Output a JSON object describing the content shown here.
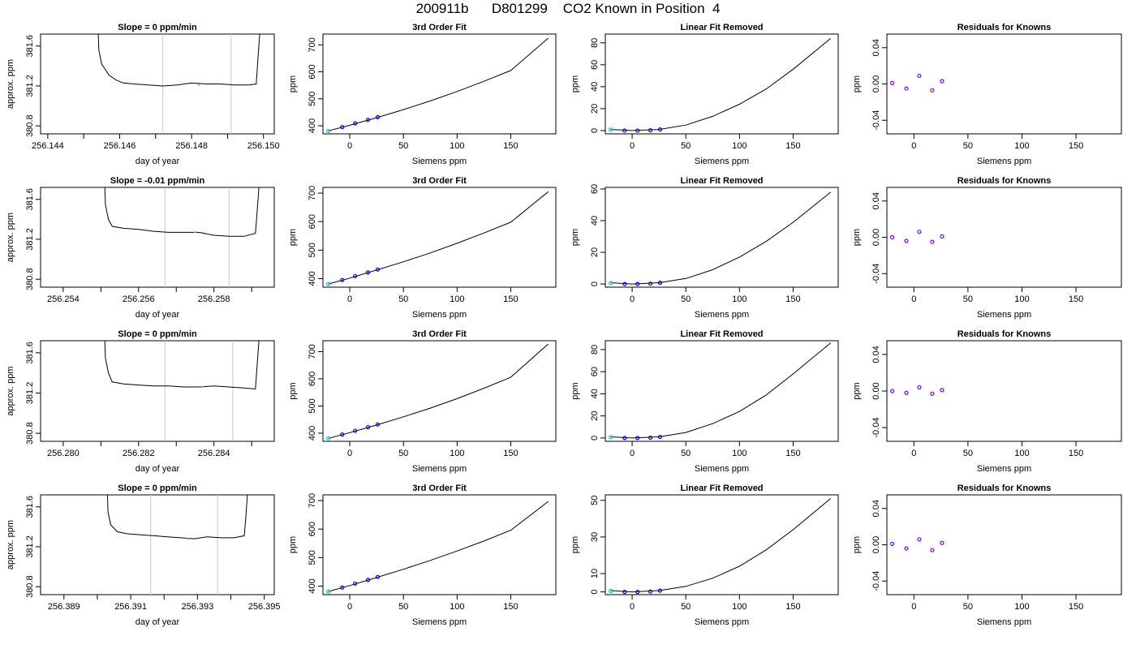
{
  "page_title": "200911b      D801299    CO2 Known in Position  4",
  "colors": {
    "line": "#000000",
    "window_lines": "#c8c8c8",
    "known_points": "#0000ff",
    "first_known_point": "#17becf",
    "residual_points": "#7b00ff",
    "mean_dot": "#ff8a80"
  },
  "chart_data": [
    {
      "type": "line",
      "title": "Slope =  0  ppm/min",
      "xlabel": "day of year",
      "ylabel": "approx. ppm",
      "xlim": [
        256.1438,
        256.1503
      ],
      "ylim": [
        380.72,
        381.72
      ],
      "xticks": [
        "256.144",
        "256.146",
        "256.148",
        "256.150"
      ],
      "xtick_values": [
        256.144,
        256.146,
        256.148,
        256.15
      ],
      "xminor": [
        256.145,
        256.147,
        256.149
      ],
      "yticks": [
        "380.8",
        "381.2",
        "381.6"
      ],
      "ytick_values": [
        380.8,
        381.2,
        381.6
      ],
      "window": [
        256.1472,
        256.1491
      ],
      "mean_marker": [
        256.1482,
        381.21
      ],
      "series": [
        {
          "x": [
            256.1454,
            256.14542,
            256.1455,
            256.1457,
            256.1459,
            256.1461,
            256.1464,
            256.1468,
            256.1472,
            256.1476,
            256.148,
            256.1484,
            256.1488,
            256.1492,
            256.1496,
            256.1498,
            256.14985,
            256.1499
          ],
          "y": [
            381.75,
            381.56,
            381.42,
            381.31,
            381.26,
            381.23,
            381.22,
            381.21,
            381.2,
            381.21,
            381.23,
            381.22,
            381.22,
            381.21,
            381.21,
            381.22,
            381.5,
            381.75
          ]
        }
      ]
    },
    {
      "type": "line",
      "title": "3rd Order Fit",
      "xlabel": "Siemens ppm",
      "ylabel": "ppm",
      "xlim": [
        -25,
        192
      ],
      "ylim": [
        370,
        740
      ],
      "xticks": [
        "0",
        "50",
        "100",
        "150"
      ],
      "xtick_values": [
        0,
        50,
        100,
        150
      ],
      "yticks": [
        "400",
        "500",
        "600",
        "700"
      ],
      "ytick_values": [
        400,
        500,
        600,
        700
      ],
      "curve": {
        "x": [
          -20,
          0,
          25,
          50,
          75,
          100,
          125,
          150,
          185
        ],
        "y": [
          381,
          402,
          430,
          460,
          492,
          527,
          565,
          605,
          725
        ]
      },
      "known_points": {
        "x": [
          -20,
          -7,
          5,
          17,
          26
        ],
        "y": [
          381,
          395,
          409,
          422,
          432
        ]
      }
    },
    {
      "type": "line",
      "title": "Linear Fit Removed",
      "xlabel": "Siemens ppm",
      "ylabel": "ppm",
      "xlim": [
        -25,
        192
      ],
      "ylim": [
        -3,
        88
      ],
      "xticks": [
        "0",
        "50",
        "100",
        "150"
      ],
      "xtick_values": [
        0,
        50,
        100,
        150
      ],
      "yticks": [
        "0",
        "20",
        "40",
        "60",
        "80"
      ],
      "ytick_values": [
        0,
        20,
        40,
        60,
        80
      ],
      "curve": {
        "x": [
          -20,
          0,
          25,
          50,
          75,
          100,
          125,
          150,
          185
        ],
        "y": [
          1,
          0,
          1,
          5,
          13,
          24,
          38,
          56,
          84
        ]
      },
      "known_points": {
        "x": [
          -20,
          -7,
          5,
          17,
          26
        ],
        "y": [
          0.8,
          0,
          0,
          0.3,
          1
        ]
      }
    },
    {
      "type": "scatter",
      "title": "Residuals for Knowns",
      "xlabel": "Siemens ppm",
      "ylabel": "ppm",
      "xlim": [
        -25,
        192
      ],
      "ylim": [
        -0.055,
        0.055
      ],
      "xticks": [
        "0",
        "50",
        "100",
        "150"
      ],
      "xtick_values": [
        0,
        50,
        100,
        150
      ],
      "yticks": [
        "-0.04",
        "0.00",
        "0.04"
      ],
      "ytick_values": [
        -0.04,
        0,
        0.04
      ],
      "points": {
        "x": [
          -20,
          -7,
          5,
          17,
          26
        ],
        "y": [
          0.001,
          -0.005,
          0.009,
          -0.007,
          0.003
        ]
      }
    },
    {
      "type": "line",
      "title": "Slope =  -0.01  ppm/min",
      "xlabel": "day of year",
      "ylabel": "approx. ppm",
      "xlim": [
        256.2534,
        256.2596
      ],
      "ylim": [
        380.72,
        381.72
      ],
      "xticks": [
        "256.254",
        "256.256",
        "256.258"
      ],
      "xtick_values": [
        256.254,
        256.256,
        256.258
      ],
      "xminor": [
        256.255,
        256.257,
        256.259
      ],
      "yticks": [
        "380.8",
        "381.2",
        "381.6"
      ],
      "ytick_values": [
        380.8,
        381.2,
        381.6
      ],
      "window": [
        256.2567,
        256.2584
      ],
      "mean_marker": [
        256.2575,
        381.27
      ],
      "series": [
        {
          "x": [
            256.2551,
            256.25512,
            256.2552,
            256.2553,
            256.2556,
            256.256,
            256.2564,
            256.2568,
            256.2572,
            256.2576,
            256.258,
            256.2584,
            256.2588,
            256.2591,
            256.25915,
            256.2592
          ],
          "y": [
            381.75,
            381.55,
            381.4,
            381.33,
            381.31,
            381.3,
            381.28,
            381.27,
            381.27,
            381.27,
            381.24,
            381.23,
            381.23,
            381.26,
            381.5,
            381.75
          ]
        }
      ]
    },
    {
      "type": "line",
      "title": "3rd Order Fit",
      "xlabel": "Siemens ppm",
      "ylabel": "ppm",
      "xlim": [
        -25,
        192
      ],
      "ylim": [
        370,
        720
      ],
      "xticks": [
        "0",
        "50",
        "100",
        "150"
      ],
      "xtick_values": [
        0,
        50,
        100,
        150
      ],
      "yticks": [
        "400",
        "500",
        "600",
        "700"
      ],
      "ytick_values": [
        400,
        500,
        600,
        700
      ],
      "curve": {
        "x": [
          -20,
          0,
          25,
          50,
          75,
          100,
          125,
          150,
          185
        ],
        "y": [
          381,
          402,
          430,
          459,
          490,
          524,
          560,
          598,
          705
        ]
      },
      "known_points": {
        "x": [
          -20,
          -7,
          5,
          17,
          26
        ],
        "y": [
          381,
          395,
          409,
          422,
          432
        ]
      }
    },
    {
      "type": "line",
      "title": "Linear Fit Removed",
      "xlabel": "Siemens ppm",
      "ylabel": "ppm",
      "xlim": [
        -25,
        192
      ],
      "ylim": [
        -2,
        61
      ],
      "xticks": [
        "0",
        "50",
        "100",
        "150"
      ],
      "xtick_values": [
        0,
        50,
        100,
        150
      ],
      "yticks": [
        "0",
        "20",
        "40",
        "60"
      ],
      "ytick_values": [
        0,
        20,
        40,
        60
      ],
      "curve": {
        "x": [
          -20,
          0,
          25,
          50,
          75,
          100,
          125,
          150,
          185
        ],
        "y": [
          0.8,
          0,
          0.8,
          3.5,
          9,
          17,
          27,
          39,
          58
        ]
      },
      "known_points": {
        "x": [
          -20,
          -7,
          5,
          17,
          26
        ],
        "y": [
          0.6,
          0,
          0,
          0.2,
          0.8
        ]
      }
    },
    {
      "type": "scatter",
      "title": "Residuals for Knowns",
      "xlabel": "Siemens ppm",
      "ylabel": "ppm",
      "xlim": [
        -25,
        192
      ],
      "ylim": [
        -0.055,
        0.055
      ],
      "xticks": [
        "0",
        "50",
        "100",
        "150"
      ],
      "xtick_values": [
        0,
        50,
        100,
        150
      ],
      "yticks": [
        "-0.04",
        "0.00",
        "0.04"
      ],
      "ytick_values": [
        -0.04,
        0,
        0.04
      ],
      "points": {
        "x": [
          -20,
          -7,
          5,
          17,
          26
        ],
        "y": [
          0,
          -0.004,
          0.006,
          -0.005,
          0.001
        ]
      }
    },
    {
      "type": "line",
      "title": "Slope =  0  ppm/min",
      "xlabel": "day of year",
      "ylabel": "approx. ppm",
      "xlim": [
        256.2794,
        256.2856
      ],
      "ylim": [
        380.72,
        381.72
      ],
      "xticks": [
        "256.280",
        "256.282",
        "256.284"
      ],
      "xtick_values": [
        256.28,
        256.282,
        256.284
      ],
      "xminor": [
        256.281,
        256.283,
        256.285
      ],
      "yticks": [
        "380.8",
        "381.2",
        "381.6"
      ],
      "ytick_values": [
        380.8,
        381.2,
        381.6
      ],
      "window": [
        256.2827,
        256.2845
      ],
      "mean_marker": [
        256.2837,
        381.26
      ],
      "series": [
        {
          "x": [
            256.2811,
            256.28112,
            256.2812,
            256.2813,
            256.2816,
            256.282,
            256.2824,
            256.2828,
            256.2832,
            256.2836,
            256.284,
            256.2844,
            256.2848,
            256.2851,
            256.28515,
            256.2852
          ],
          "y": [
            381.75,
            381.55,
            381.4,
            381.31,
            381.29,
            381.28,
            381.27,
            381.27,
            381.26,
            381.26,
            381.27,
            381.26,
            381.25,
            381.24,
            381.5,
            381.75
          ]
        }
      ]
    },
    {
      "type": "line",
      "title": "3rd Order Fit",
      "xlabel": "Siemens ppm",
      "ylabel": "ppm",
      "xlim": [
        -25,
        192
      ],
      "ylim": [
        370,
        740
      ],
      "xticks": [
        "0",
        "50",
        "100",
        "150"
      ],
      "xtick_values": [
        0,
        50,
        100,
        150
      ],
      "yticks": [
        "400",
        "500",
        "600",
        "700"
      ],
      "ytick_values": [
        400,
        500,
        600,
        700
      ],
      "curve": {
        "x": [
          -20,
          0,
          25,
          50,
          75,
          100,
          125,
          150,
          185
        ],
        "y": [
          381,
          402,
          430,
          460,
          492,
          527,
          565,
          606,
          728
        ]
      },
      "known_points": {
        "x": [
          -20,
          -7,
          5,
          17,
          26
        ],
        "y": [
          381,
          395,
          409,
          422,
          432
        ]
      }
    },
    {
      "type": "line",
      "title": "Linear Fit Removed",
      "xlabel": "Siemens ppm",
      "ylabel": "ppm",
      "xlim": [
        -25,
        192
      ],
      "ylim": [
        -3,
        88
      ],
      "xticks": [
        "0",
        "50",
        "100",
        "150"
      ],
      "xtick_values": [
        0,
        50,
        100,
        150
      ],
      "yticks": [
        "0",
        "20",
        "40",
        "60",
        "80"
      ],
      "ytick_values": [
        0,
        20,
        40,
        60,
        80
      ],
      "curve": {
        "x": [
          -20,
          0,
          25,
          50,
          75,
          100,
          125,
          150,
          185
        ],
        "y": [
          1,
          0,
          1,
          5,
          13,
          24,
          39,
          58,
          86
        ]
      },
      "known_points": {
        "x": [
          -20,
          -7,
          5,
          17,
          26
        ],
        "y": [
          0.8,
          0,
          0,
          0.3,
          1
        ]
      }
    },
    {
      "type": "scatter",
      "title": "Residuals for Knowns",
      "xlabel": "Siemens ppm",
      "ylabel": "ppm",
      "xlim": [
        -25,
        192
      ],
      "ylim": [
        -0.055,
        0.055
      ],
      "xticks": [
        "0",
        "50",
        "100",
        "150"
      ],
      "xtick_values": [
        0,
        50,
        100,
        150
      ],
      "yticks": [
        "-0.04",
        "0.00",
        "0.04"
      ],
      "ytick_values": [
        -0.04,
        0,
        0.04
      ],
      "points": {
        "x": [
          -20,
          -7,
          5,
          17,
          26
        ],
        "y": [
          0,
          -0.002,
          0.004,
          -0.003,
          0.001
        ]
      }
    },
    {
      "type": "line",
      "title": "Slope =  0  ppm/min",
      "xlabel": "day of year",
      "ylabel": "approx. ppm",
      "xlim": [
        256.3883,
        256.3953
      ],
      "ylim": [
        380.72,
        381.72
      ],
      "xticks": [
        "256.389",
        "256.391",
        "256.393",
        "256.395"
      ],
      "xtick_values": [
        256.389,
        256.391,
        256.393,
        256.395
      ],
      "xminor": [
        256.39,
        256.392,
        256.394
      ],
      "yticks": [
        "380.8",
        "381.2",
        "381.6"
      ],
      "ytick_values": [
        380.8,
        381.2,
        381.6
      ],
      "window": [
        256.3916,
        256.3936
      ],
      "mean_marker": [
        256.3927,
        381.28
      ],
      "series": [
        {
          "x": [
            256.3903,
            256.39032,
            256.3904,
            256.3906,
            256.3909,
            256.3913,
            256.3917,
            256.3921,
            256.3925,
            256.3929,
            256.3933,
            256.3937,
            256.3941,
            256.3944,
            256.39445,
            256.3945
          ],
          "y": [
            381.75,
            381.55,
            381.42,
            381.35,
            381.33,
            381.32,
            381.31,
            381.3,
            381.29,
            381.28,
            381.3,
            381.29,
            381.29,
            381.31,
            381.5,
            381.75
          ]
        }
      ]
    },
    {
      "type": "line",
      "title": "3rd Order Fit",
      "xlabel": "Siemens ppm",
      "ylabel": "ppm",
      "xlim": [
        -25,
        192
      ],
      "ylim": [
        370,
        720
      ],
      "xticks": [
        "0",
        "50",
        "100",
        "150"
      ],
      "xtick_values": [
        0,
        50,
        100,
        150
      ],
      "yticks": [
        "400",
        "500",
        "600",
        "700"
      ],
      "ytick_values": [
        400,
        500,
        600,
        700
      ],
      "curve": {
        "x": [
          -20,
          0,
          25,
          50,
          75,
          100,
          125,
          150,
          185
        ],
        "y": [
          381,
          402,
          430,
          459,
          490,
          523,
          558,
          596,
          697
        ]
      },
      "known_points": {
        "x": [
          -20,
          -7,
          5,
          17,
          26
        ],
        "y": [
          381,
          395,
          409,
          422,
          432
        ]
      }
    },
    {
      "type": "line",
      "title": "Linear Fit Removed",
      "xlabel": "Siemens ppm",
      "ylabel": "ppm",
      "xlim": [
        -25,
        192
      ],
      "ylim": [
        -1.5,
        53
      ],
      "xticks": [
        "0",
        "50",
        "100",
        "150"
      ],
      "xtick_values": [
        0,
        50,
        100,
        150
      ],
      "yticks": [
        "0",
        "10",
        "30",
        "50"
      ],
      "ytick_values": [
        0,
        10,
        30,
        50
      ],
      "curve": {
        "x": [
          -20,
          0,
          25,
          50,
          75,
          100,
          125,
          150,
          185
        ],
        "y": [
          0.7,
          0,
          0.7,
          3,
          7.5,
          14,
          23,
          34,
          51
        ]
      },
      "known_points": {
        "x": [
          -20,
          -7,
          5,
          17,
          26
        ],
        "y": [
          0.5,
          0,
          0,
          0.2,
          0.7
        ]
      }
    },
    {
      "type": "scatter",
      "title": "Residuals for Knowns",
      "xlabel": "Siemens ppm",
      "ylabel": "ppm",
      "xlim": [
        -25,
        192
      ],
      "ylim": [
        -0.055,
        0.055
      ],
      "xticks": [
        "0",
        "50",
        "100",
        "150"
      ],
      "xtick_values": [
        0,
        50,
        100,
        150
      ],
      "yticks": [
        "-0.04",
        "0.00",
        "0.04"
      ],
      "ytick_values": [
        -0.04,
        0,
        0.04
      ],
      "points": {
        "x": [
          -20,
          -7,
          5,
          17,
          26
        ],
        "y": [
          0.001,
          -0.004,
          0.006,
          -0.006,
          0.002
        ]
      }
    }
  ]
}
